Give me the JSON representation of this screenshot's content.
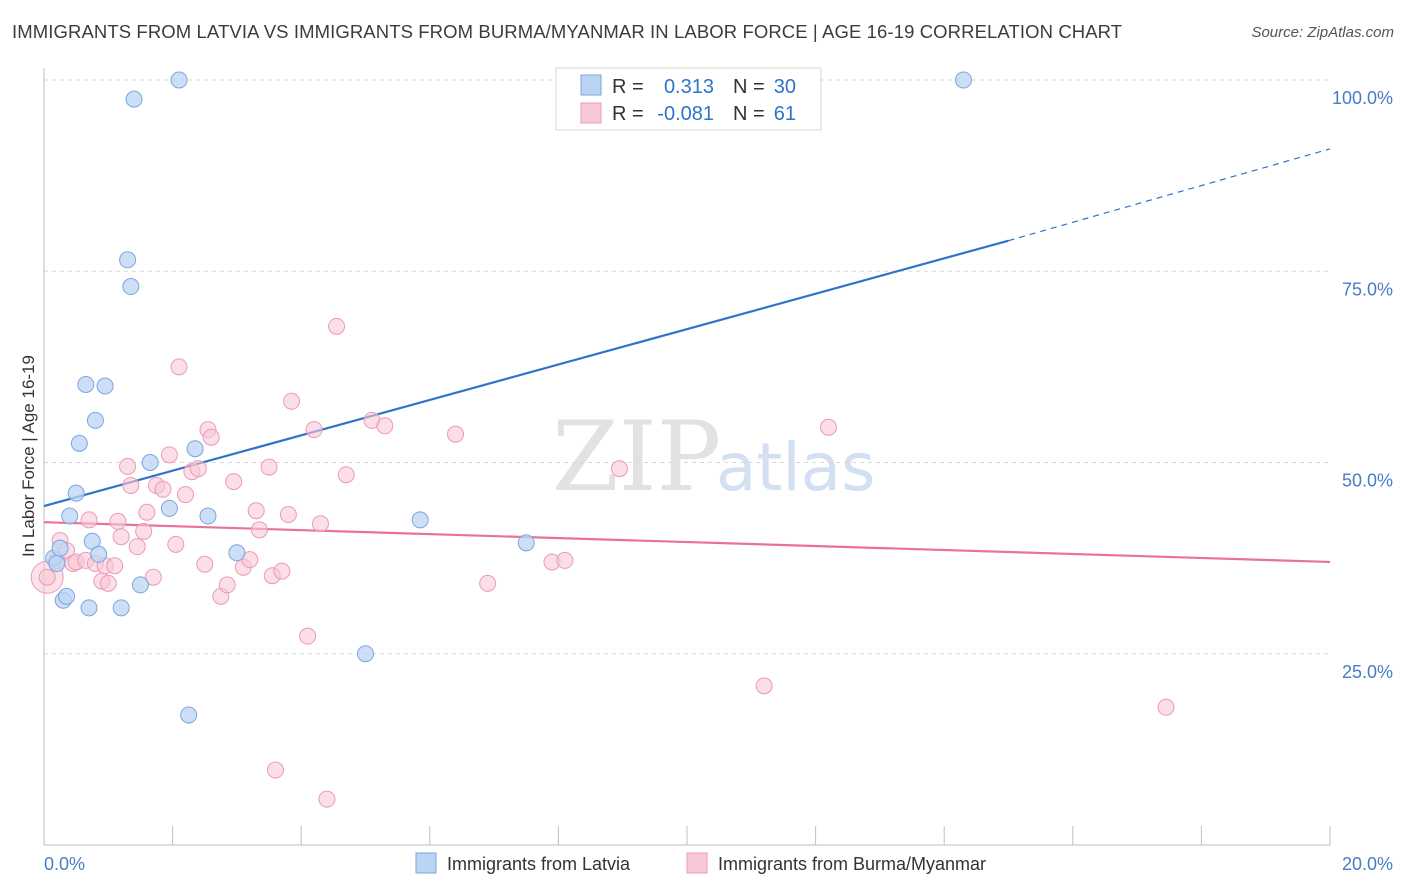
{
  "header": {
    "title": "IMMIGRANTS FROM LATVIA VS IMMIGRANTS FROM BURMA/MYANMAR IN LABOR FORCE | AGE 16-19 CORRELATION CHART",
    "source": "Source: ZipAtlas.com"
  },
  "watermark": {
    "zip": "ZIP",
    "atlas": "atlas"
  },
  "colors": {
    "latvia_fill": "#bcd4f3",
    "latvia_stroke": "#7aa6e0",
    "latvia_line": "#2f74c9",
    "burma_fill": "#f8c8d7",
    "burma_stroke": "#ec9ab5",
    "burma_line": "#e7729a",
    "grid": "#d9d9d9",
    "tick_label": "#4a7cc4"
  },
  "legend": {
    "rows": [
      {
        "r_label": "R =",
        "r_value": "0.313",
        "n_label": "N =",
        "n_value": "30"
      },
      {
        "r_label": "R =",
        "r_value": "-0.081",
        "n_label": "N =",
        "n_value": "61"
      }
    ]
  },
  "chart_data": {
    "type": "scatter",
    "title": "IMMIGRANTS FROM LATVIA VS IMMIGRANTS FROM BURMA/MYANMAR IN LABOR FORCE | AGE 16-19 CORRELATION CHART",
    "xlabel": "",
    "ylabel": "In Labor Force | Age 16-19",
    "xlim": [
      0,
      20
    ],
    "ylim": [
      0,
      100
    ],
    "x_tick_labels": [
      "0.0%",
      "20.0%"
    ],
    "y_ticks": [
      25,
      50,
      75,
      100
    ],
    "y_tick_labels": [
      "25.0%",
      "50.0%",
      "75.0%",
      "100.0%"
    ],
    "grid": true,
    "legend_placement": "top-center",
    "series": [
      {
        "name": "Immigrants from Latvia",
        "r": 0.313,
        "n": 30,
        "trend": {
          "x0": 0.0,
          "y0": 44.3,
          "x1": 15.0,
          "y1": 79.0,
          "dash_to_x": 20.0,
          "dash_to_y": 91.0
        },
        "points": [
          [
            0.15,
            37.5
          ],
          [
            0.2,
            36.8
          ],
          [
            0.25,
            38.8
          ],
          [
            0.3,
            32.0
          ],
          [
            0.35,
            32.5
          ],
          [
            0.4,
            43.0
          ],
          [
            0.5,
            46.0
          ],
          [
            0.55,
            52.5
          ],
          [
            0.65,
            60.2
          ],
          [
            0.7,
            31.0
          ],
          [
            0.75,
            39.7
          ],
          [
            0.8,
            55.5
          ],
          [
            0.85,
            38.0
          ],
          [
            0.95,
            60.0
          ],
          [
            1.2,
            31.0
          ],
          [
            1.3,
            76.5
          ],
          [
            1.35,
            73.0
          ],
          [
            1.4,
            97.5
          ],
          [
            1.5,
            34.0
          ],
          [
            1.65,
            50.0
          ],
          [
            1.95,
            44.0
          ],
          [
            2.1,
            100.0
          ],
          [
            2.25,
            17.0
          ],
          [
            2.35,
            51.8
          ],
          [
            2.55,
            43.0
          ],
          [
            3.0,
            38.2
          ],
          [
            5.0,
            25.0
          ],
          [
            5.85,
            42.5
          ],
          [
            7.5,
            39.5
          ],
          [
            14.3,
            100.0
          ]
        ]
      },
      {
        "name": "Immigrants from Burma/Myanmar",
        "r": -0.081,
        "n": 61,
        "trend": {
          "x0": 0.0,
          "y0": 42.2,
          "x1": 20.0,
          "y1": 37.0
        },
        "points": [
          [
            0.05,
            35.0
          ],
          [
            0.2,
            37.2
          ],
          [
            0.25,
            39.8
          ],
          [
            0.35,
            38.5
          ],
          [
            0.45,
            36.8
          ],
          [
            0.5,
            37.0
          ],
          [
            0.65,
            37.2
          ],
          [
            0.7,
            42.5
          ],
          [
            0.8,
            36.8
          ],
          [
            0.9,
            34.5
          ],
          [
            0.95,
            36.5
          ],
          [
            1.0,
            34.2
          ],
          [
            1.1,
            36.5
          ],
          [
            1.15,
            42.3
          ],
          [
            1.2,
            40.3
          ],
          [
            1.3,
            49.5
          ],
          [
            1.35,
            47.0
          ],
          [
            1.45,
            39.0
          ],
          [
            1.55,
            41.0
          ],
          [
            1.6,
            43.5
          ],
          [
            1.7,
            35.0
          ],
          [
            1.75,
            47.0
          ],
          [
            1.85,
            46.5
          ],
          [
            1.95,
            51.0
          ],
          [
            2.05,
            39.3
          ],
          [
            2.1,
            62.5
          ],
          [
            2.2,
            45.8
          ],
          [
            2.3,
            48.8
          ],
          [
            2.4,
            49.2
          ],
          [
            2.5,
            36.7
          ],
          [
            2.55,
            54.3
          ],
          [
            2.6,
            53.3
          ],
          [
            2.75,
            32.5
          ],
          [
            2.85,
            34.0
          ],
          [
            2.95,
            47.5
          ],
          [
            3.1,
            36.3
          ],
          [
            3.2,
            37.3
          ],
          [
            3.3,
            43.7
          ],
          [
            3.35,
            41.2
          ],
          [
            3.5,
            49.4
          ],
          [
            3.55,
            35.2
          ],
          [
            3.6,
            9.8
          ],
          [
            3.7,
            35.8
          ],
          [
            3.8,
            43.2
          ],
          [
            3.85,
            58.0
          ],
          [
            4.1,
            27.3
          ],
          [
            4.2,
            54.3
          ],
          [
            4.3,
            42.0
          ],
          [
            4.4,
            6.0
          ],
          [
            4.55,
            67.8
          ],
          [
            4.7,
            48.4
          ],
          [
            5.1,
            55.5
          ],
          [
            5.3,
            54.8
          ],
          [
            6.4,
            53.7
          ],
          [
            6.9,
            34.2
          ],
          [
            7.9,
            37.0
          ],
          [
            8.1,
            37.2
          ],
          [
            8.95,
            49.2
          ],
          [
            11.2,
            20.8
          ],
          [
            12.2,
            54.6
          ],
          [
            17.45,
            18.0
          ]
        ]
      }
    ]
  }
}
